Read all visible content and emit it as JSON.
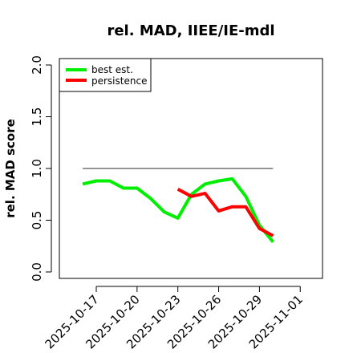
{
  "chart_data": {
    "type": "line",
    "title": "rel. MAD, IIEE/IE-mdl",
    "xlabel": "",
    "ylabel": "rel. MAD score",
    "xlim": [
      "2025-10-15",
      "2025-11-01"
    ],
    "ylim": [
      0,
      2.0
    ],
    "x_ticks": [
      "2025-10-17",
      "2025-10-20",
      "2025-10-23",
      "2025-10-26",
      "2025-10-29",
      "2025-11-01"
    ],
    "y_ticks": [
      "0.0",
      "0.5",
      "1.0",
      "1.5",
      "2.0"
    ],
    "grid": false,
    "legend_position": "top-left",
    "reference_line": {
      "y": 1.0,
      "x_start": "2025-10-16",
      "x_end": "2025-10-30",
      "color": "#555555"
    },
    "series": [
      {
        "name": "best est.",
        "color": "#00ee00",
        "x": [
          "2025-10-16",
          "2025-10-17",
          "2025-10-18",
          "2025-10-19",
          "2025-10-20",
          "2025-10-21",
          "2025-10-22",
          "2025-10-23",
          "2025-10-24",
          "2025-10-25",
          "2025-10-26",
          "2025-10-27",
          "2025-10-28",
          "2025-10-29",
          "2025-10-30"
        ],
        "values": [
          0.85,
          0.88,
          0.88,
          0.81,
          0.81,
          0.71,
          0.58,
          0.52,
          0.75,
          0.85,
          0.88,
          0.9,
          0.73,
          0.45,
          0.29
        ]
      },
      {
        "name": "persistence",
        "color": "#ff0000",
        "x": [
          "2025-10-23",
          "2025-10-24",
          "2025-10-25",
          "2025-10-26",
          "2025-10-27",
          "2025-10-28",
          "2025-10-29",
          "2025-10-30"
        ],
        "values": [
          0.8,
          0.73,
          0.76,
          0.59,
          0.63,
          0.63,
          0.42,
          0.35
        ]
      }
    ]
  }
}
